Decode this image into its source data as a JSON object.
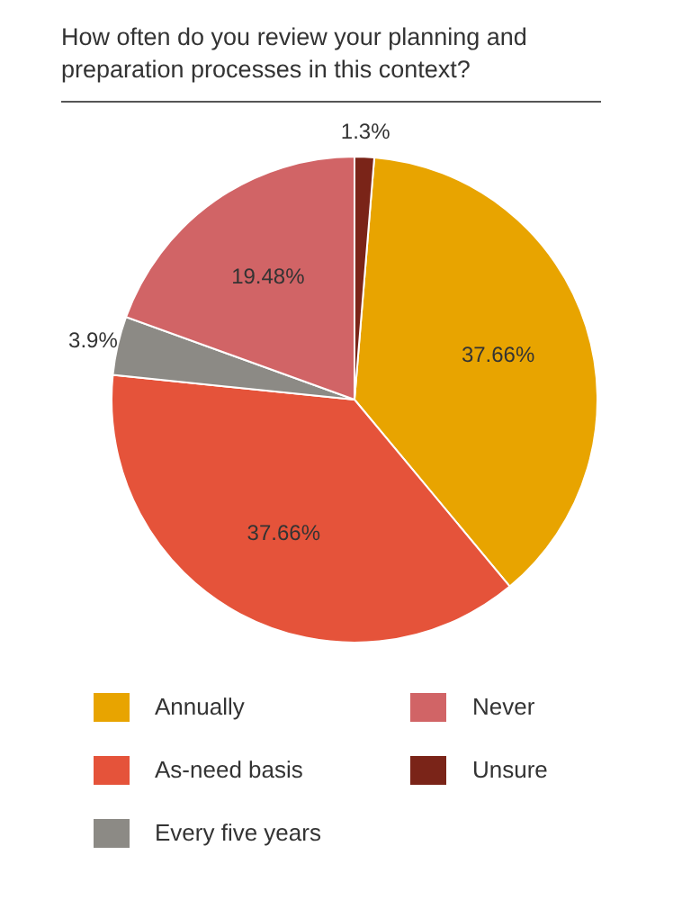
{
  "chart_data": {
    "type": "pie",
    "title": "How often do you review your planning and preparation processes in this context?",
    "categories": [
      "Annually",
      "As-need basis",
      "Every five years",
      "Never",
      "Unsure"
    ],
    "values": [
      37.66,
      37.66,
      3.9,
      19.48,
      1.3
    ],
    "value_labels": [
      "37.66%",
      "37.66%",
      "3.9%",
      "19.48%",
      "1.3%"
    ],
    "colors": [
      "#e8a400",
      "#e5533a",
      "#8c8a85",
      "#d16466",
      "#7a2418"
    ],
    "legend": "bottom"
  }
}
